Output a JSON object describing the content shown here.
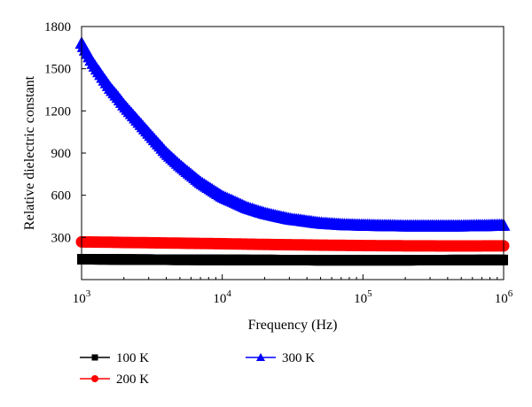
{
  "chart_data": {
    "type": "line",
    "title": "",
    "xlabel": "Frequency (Hz)",
    "ylabel": "Relative dielectric constant",
    "x_scale": "log",
    "xlim": [
      1000,
      1000000
    ],
    "ylim": [
      0,
      1800
    ],
    "x_ticks": [
      1000,
      10000,
      100000,
      1000000
    ],
    "x_tick_labels": [
      {
        "base": "10",
        "exp": "3"
      },
      {
        "base": "10",
        "exp": "4"
      },
      {
        "base": "10",
        "exp": "5"
      },
      {
        "base": "10",
        "exp": "6"
      }
    ],
    "y_ticks": [
      300,
      600,
      900,
      1200,
      1500,
      1800
    ],
    "y_tick_labels": [
      "300",
      "600",
      "900",
      "1200",
      "1500",
      "1800"
    ],
    "grid": false,
    "legend_position": "below",
    "series": [
      {
        "name": "100 K",
        "color": "#000000",
        "marker": "square",
        "x": [
          1000,
          1500,
          2000,
          3000,
          5000,
          10000,
          20000,
          50000,
          100000,
          200000,
          500000,
          1000000
        ],
        "y": [
          145,
          144,
          143,
          142,
          141,
          140,
          139,
          138,
          138,
          138,
          139,
          140
        ]
      },
      {
        "name": "200 K",
        "color": "#ff0000",
        "marker": "circle",
        "x": [
          1000,
          1500,
          2000,
          3000,
          5000,
          10000,
          20000,
          50000,
          100000,
          200000,
          500000,
          1000000
        ],
        "y": [
          268,
          266,
          264,
          262,
          259,
          255,
          250,
          245,
          242,
          240,
          239,
          240
        ]
      },
      {
        "name": "300 K",
        "color": "#0000ff",
        "marker": "triangle",
        "x": [
          1000,
          1200,
          1500,
          1600,
          1800,
          2000,
          2500,
          3000,
          4000,
          5000,
          7000,
          10000,
          15000,
          20000,
          30000,
          50000,
          70000,
          100000,
          200000,
          500000,
          1000000
        ],
        "y": [
          1680,
          1540,
          1400,
          1360,
          1300,
          1240,
          1130,
          1040,
          900,
          810,
          690,
          590,
          510,
          470,
          430,
          400,
          390,
          385,
          380,
          380,
          385
        ]
      }
    ]
  }
}
